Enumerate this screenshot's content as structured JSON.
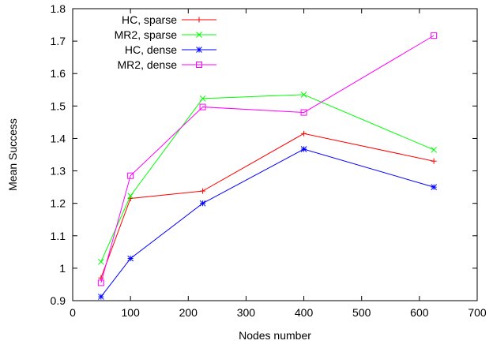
{
  "chart_data": {
    "type": "line",
    "xlabel": "Nodes number",
    "ylabel": "Mean Success",
    "xlim": [
      0,
      700
    ],
    "ylim": [
      0.9,
      1.8
    ],
    "xticks": [
      0,
      100,
      200,
      300,
      400,
      500,
      600,
      700
    ],
    "yticks": [
      0.9,
      1.0,
      1.1,
      1.2,
      1.3,
      1.4,
      1.5,
      1.6,
      1.7,
      1.8
    ],
    "xtick_labels": [
      "0",
      "100",
      "200",
      "300",
      "400",
      "500",
      "600",
      "700"
    ],
    "ytick_labels": [
      "0.9",
      "1",
      "1.1",
      "1.2",
      "1.3",
      "1.4",
      "1.5",
      "1.6",
      "1.7",
      "1.8"
    ],
    "grid": false,
    "legend_position": "top-left",
    "x": [
      49,
      100,
      225,
      400,
      625
    ],
    "series": [
      {
        "name": "HC, sparse",
        "color": "#ff0000",
        "marker": "plus",
        "values": [
          0.97,
          1.215,
          1.238,
          1.415,
          1.33
        ]
      },
      {
        "name": "MR2, sparse",
        "color": "#00ff00",
        "marker": "cross",
        "values": [
          1.02,
          1.223,
          1.523,
          1.535,
          1.365
        ]
      },
      {
        "name": "HC, dense",
        "color": "#0000ff",
        "marker": "star",
        "values": [
          0.912,
          1.03,
          1.2,
          1.367,
          1.25
        ]
      },
      {
        "name": "MR2, dense",
        "color": "#ff00ff",
        "marker": "square",
        "values": [
          0.955,
          1.285,
          1.497,
          1.48,
          1.717
        ]
      }
    ]
  }
}
